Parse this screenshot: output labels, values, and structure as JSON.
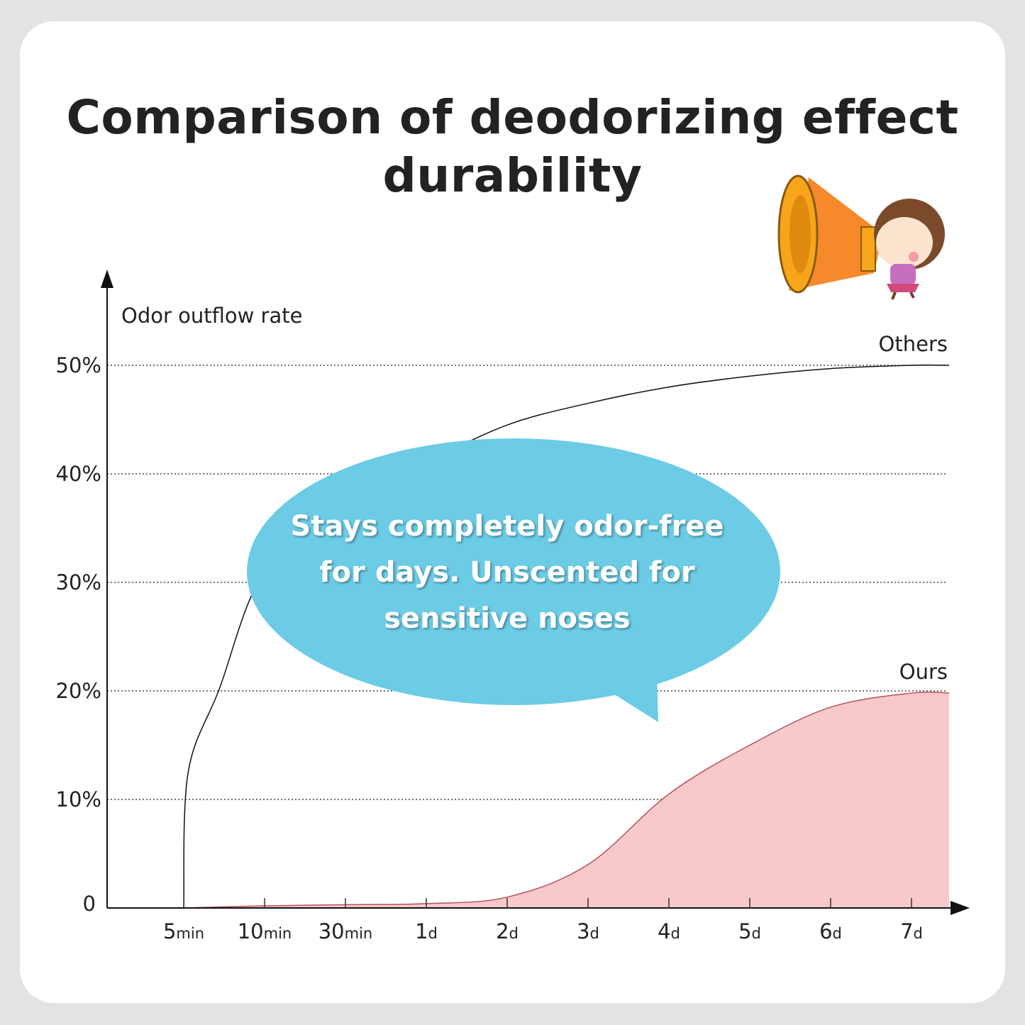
{
  "title": "Comparison of deodorizing effect durability",
  "bubble_text": "Stays completely odor-free for days. Unscented for sensitive noses",
  "colors": {
    "ours_fill": "#f7c9cb",
    "ours_line": "#b5525a",
    "others_line": "#111111",
    "bubble": "#6ccce6",
    "grid": "#444444"
  },
  "illustration": "girl-with-megaphone",
  "chart_data": {
    "type": "line",
    "ylabel": "Odor outflow rate",
    "xlabel": "",
    "ylim": [
      0,
      50
    ],
    "yticks": [
      "0",
      "10%",
      "20%",
      "30%",
      "40%",
      "50%"
    ],
    "categories": [
      {
        "num": "5",
        "unit": "min"
      },
      {
        "num": "10",
        "unit": "min"
      },
      {
        "num": "30",
        "unit": "min"
      },
      {
        "num": "1",
        "unit": "d"
      },
      {
        "num": "2",
        "unit": "d"
      },
      {
        "num": "3",
        "unit": "d"
      },
      {
        "num": "4",
        "unit": "d"
      },
      {
        "num": "5",
        "unit": "d"
      },
      {
        "num": "6",
        "unit": "d"
      },
      {
        "num": "7",
        "unit": "d"
      }
    ],
    "grid": "horizontal dotted",
    "series": [
      {
        "name": "Others",
        "values": [
          0,
          31,
          37,
          41,
          44.5,
          46.5,
          48,
          49,
          49.7,
          50
        ],
        "style": "line"
      },
      {
        "name": "Ours",
        "values": [
          0,
          0.2,
          0.3,
          0.4,
          1,
          4,
          10.5,
          15,
          18.5,
          19.8
        ],
        "style": "area"
      }
    ]
  }
}
